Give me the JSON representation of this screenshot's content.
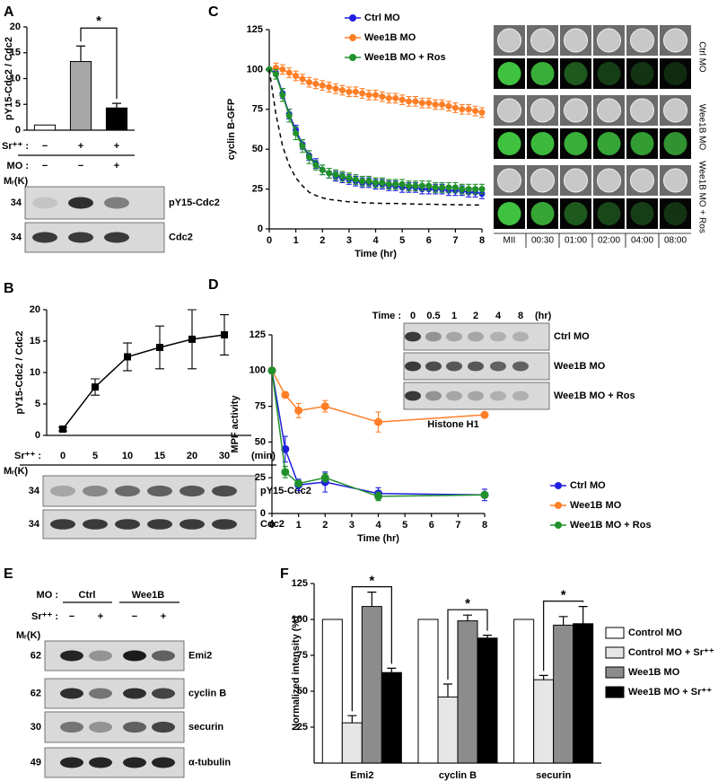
{
  "chart_data": [
    {
      "type": "bar",
      "ylabel": "pY15-Cdc2 / Cdc2",
      "values": [
        1,
        13.3,
        4.3
      ],
      "errors": [
        null,
        3,
        0.9
      ],
      "colors": [
        "#ffffff",
        "#a6a6a6",
        "#000000"
      ],
      "ylim": [
        0,
        20
      ],
      "yticks": [
        0,
        5,
        10,
        15,
        20
      ],
      "significance": {
        "label": "*",
        "bars": [
          1,
          2
        ]
      },
      "conditions": [
        {
          "label": "Sr⁺⁺ :",
          "values": [
            "−",
            "+",
            "+"
          ]
        },
        {
          "label": "MO :",
          "values": [
            "−",
            "−",
            "+"
          ]
        }
      ]
    },
    {
      "type": "line",
      "ylabel": "pY15-Cdc2 / Cdc2",
      "x_label": "Sr⁺⁺ :",
      "x_unit": "(min)",
      "categories": [
        "0",
        "5",
        "10",
        "15",
        "20",
        "30"
      ],
      "values": [
        1,
        7.7,
        12.5,
        14,
        15.3,
        16
      ],
      "errors": [
        0.3,
        1.3,
        2.2,
        3.4,
        4.7,
        3.2
      ],
      "color": "#000000",
      "marker": "square",
      "ylim": [
        0,
        20
      ],
      "yticks": [
        0,
        5,
        10,
        15,
        20
      ]
    },
    {
      "type": "line",
      "ylabel": "cyclin B-GFP",
      "xlabel": "Time (hr)",
      "legend": "upper center",
      "x": [
        0,
        0.25,
        0.5,
        0.75,
        1,
        1.25,
        1.5,
        1.75,
        2,
        2.25,
        2.5,
        2.75,
        3,
        3.25,
        3.5,
        3.75,
        4,
        4.25,
        4.5,
        4.75,
        5,
        5.25,
        5.5,
        5.75,
        6,
        6.25,
        6.5,
        6.75,
        7,
        7.25,
        7.5,
        7.75,
        8
      ],
      "xlim": [
        0,
        8
      ],
      "xticks": [
        0,
        1,
        2,
        3,
        4,
        5,
        6,
        7,
        8
      ],
      "ylim": [
        0,
        125
      ],
      "yticks": [
        0,
        25,
        50,
        75,
        100,
        125
      ],
      "series": [
        {
          "name": "Ctrl MO",
          "color": "#1f1fe0",
          "values": [
            100,
            98,
            85,
            72,
            62,
            53,
            46,
            41,
            37,
            35,
            33,
            32,
            31,
            30,
            29,
            29,
            28,
            28,
            27,
            27,
            26,
            26,
            26,
            25,
            25,
            25,
            25,
            24,
            24,
            24,
            23,
            23,
            22
          ],
          "errors": [
            0,
            2,
            3,
            3,
            3,
            3,
            3,
            3,
            3,
            3,
            3,
            3,
            3,
            3,
            3,
            3,
            3,
            3,
            3,
            3,
            3,
            3,
            3,
            3,
            3,
            3,
            3,
            3,
            3,
            3,
            3,
            3,
            3
          ]
        },
        {
          "name": "Wee1B MO",
          "color": "#ff7f27",
          "values": [
            100,
            101,
            100,
            98,
            96,
            94,
            92,
            91,
            90,
            89,
            88,
            87,
            86,
            86,
            85,
            84,
            84,
            83,
            82,
            82,
            81,
            80,
            80,
            79,
            79,
            78,
            78,
            77,
            76,
            75,
            75,
            74,
            73
          ],
          "errors": [
            0,
            3,
            3,
            3,
            3,
            3,
            3,
            3,
            3,
            3,
            3,
            3,
            3,
            3,
            3,
            3,
            3,
            3,
            3,
            3,
            3,
            3,
            3,
            3,
            3,
            3,
            3,
            3,
            3,
            3,
            3,
            3,
            3
          ]
        },
        {
          "name": "Wee1B MO + Ros",
          "color": "#21912b",
          "values": [
            100,
            97,
            84,
            71,
            60,
            52,
            45,
            40,
            37,
            35,
            34,
            33,
            32,
            31,
            30,
            30,
            29,
            29,
            28,
            28,
            28,
            27,
            27,
            27,
            27,
            26,
            26,
            26,
            26,
            25,
            25,
            25,
            25
          ],
          "errors": [
            0,
            3,
            4,
            4,
            4,
            4,
            4,
            3,
            3,
            3,
            3,
            3,
            3,
            3,
            3,
            3,
            3,
            3,
            3,
            3,
            3,
            3,
            3,
            3,
            3,
            3,
            3,
            3,
            3,
            3,
            3,
            3,
            3
          ]
        },
        {
          "color": "#000000",
          "dash": true,
          "values": [
            100,
            72,
            52,
            40,
            32,
            27,
            23,
            21,
            19.5,
            18.5,
            18,
            17.5,
            17,
            16.8,
            16.5,
            16.3,
            16.2,
            16,
            16,
            16,
            15.8,
            15.7,
            15.6,
            15.5,
            15.5,
            15.4,
            15.3,
            15.2,
            15.2,
            15.1,
            15,
            15,
            15
          ]
        }
      ]
    },
    {
      "type": "line",
      "ylabel": "MPF activity",
      "xlabel": "Time (hr)",
      "legend": "lower right",
      "x": [
        0,
        0.5,
        1,
        2,
        4,
        8
      ],
      "xlim": [
        0,
        8
      ],
      "xticks": [
        0,
        1,
        2,
        3,
        4,
        5,
        6,
        7,
        8
      ],
      "ylim": [
        0,
        125
      ],
      "yticks": [
        0,
        25,
        50,
        75,
        100,
        125
      ],
      "series": [
        {
          "name": "Ctrl MO",
          "color": "#1f1fe0",
          "values": [
            100,
            45,
            20,
            22,
            14,
            13
          ],
          "errors": [
            0,
            9,
            4,
            7,
            4,
            4
          ]
        },
        {
          "name": "Wee1B MO",
          "color": "#ff7f27",
          "values": [
            100,
            83,
            72,
            75,
            64,
            69
          ],
          "errors": [
            0,
            2,
            5,
            4,
            7,
            1
          ]
        },
        {
          "name": "Wee1B MO + Ros",
          "color": "#21912b",
          "values": [
            100,
            29,
            21,
            25,
            12,
            13
          ],
          "errors": [
            0,
            4,
            2,
            3,
            3,
            2
          ]
        }
      ]
    },
    {
      "type": "bar",
      "ylabel": "Normalized intensity (%)",
      "legend": "right",
      "categories": [
        "Emi2",
        "cyclin B",
        "securin"
      ],
      "ylim": [
        0,
        125
      ],
      "yticks": [
        25,
        50,
        75,
        100,
        125
      ],
      "series": [
        {
          "name": "Control MO",
          "color": "#ffffff",
          "values": [
            100,
            100,
            100
          ],
          "errors": [
            null,
            null,
            null
          ]
        },
        {
          "name": "Control MO + Sr⁺⁺",
          "color": "#e6e6e6",
          "values": [
            28,
            46,
            58
          ],
          "errors": [
            5,
            9,
            3
          ]
        },
        {
          "name": "Wee1B MO",
          "color": "#8c8c8c",
          "values": [
            109,
            99,
            96
          ],
          "errors": [
            10,
            4,
            6
          ]
        },
        {
          "name": "Wee1B MO + Sr⁺⁺",
          "color": "#000000",
          "values": [
            63,
            87,
            97
          ],
          "errors": [
            3,
            2,
            12
          ]
        }
      ],
      "significance": {
        "labels": [
          "*",
          "*",
          "*"
        ],
        "bars": [
          1,
          3
        ]
      }
    }
  ],
  "figure": {
    "panels": [
      "A",
      "B",
      "C",
      "D",
      "E",
      "F"
    ],
    "a_blot": {
      "mr": "Mᵣ(K)",
      "rows": [
        {
          "mw": 34,
          "label": "pY15-Cdc2"
        },
        {
          "mw": 34,
          "label": "Cdc2"
        }
      ]
    },
    "b_blot": {
      "mr": "Mᵣ(K)",
      "rows": [
        {
          "mw": 34,
          "label": "pY15-Cdc2"
        },
        {
          "mw": 34,
          "label": "Cdc2"
        }
      ]
    },
    "c_images": {
      "times": [
        "MII",
        "00:30",
        "01:00",
        "02:00",
        "04:00",
        "08:00"
      ],
      "rows": [
        "Ctrl MO",
        "Wee1B MO",
        "Wee1B MO + Ros"
      ]
    },
    "d_inset": {
      "time_label": "Time :",
      "times": [
        0,
        0.5,
        1,
        2,
        4,
        8
      ],
      "unit": "(hr)",
      "rows": [
        "Ctrl MO",
        "Wee1B MO",
        "Wee1B MO + Ros"
      ],
      "caption": "Histone H1"
    },
    "e_blot": {
      "mo_label": "MO :",
      "groups": [
        "Ctrl",
        "Wee1B"
      ],
      "sr_label": "Sr⁺⁺ :",
      "sr": [
        "−",
        "+",
        "−",
        "+"
      ],
      "mr": "Mᵣ(K)",
      "rows": [
        {
          "mw": 62,
          "label": "Emi2"
        },
        {
          "mw": 62,
          "label": "cyclin B"
        },
        {
          "mw": 30,
          "label": "securin"
        },
        {
          "mw": 49,
          "label": "α-tubulin"
        }
      ]
    }
  }
}
